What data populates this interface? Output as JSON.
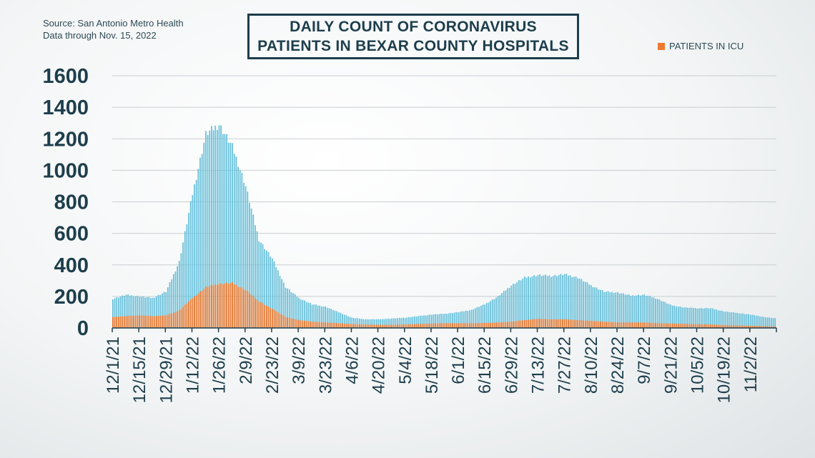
{
  "header": {
    "source_line1": "Source: San Antonio Metro Health",
    "source_line2": "Data through Nov. 15, 2022",
    "title_line1": "DAILY COUNT OF CORONAVIRUS",
    "title_line2": "PATIENTS IN BEXAR COUNTY HOSPITALS",
    "legend_icu": "PATIENTS IN ICU"
  },
  "colors": {
    "total": "#67c0da",
    "icu": "#ec7a30",
    "grid": "#c9ced1",
    "text": "#1d3e4c"
  },
  "chart_data": {
    "type": "bar",
    "stacked": true,
    "title": "DAILY COUNT OF CORONAVIRUS PATIENTS IN BEXAR COUNTY HOSPITALS",
    "ylim": [
      0,
      1600
    ],
    "yticks": [
      0,
      200,
      400,
      600,
      800,
      1000,
      1200,
      1400,
      1600
    ],
    "xtick_labels": [
      "12/1/21",
      "12/15/21",
      "12/29/21",
      "1/12/22",
      "1/26/22",
      "2/9/22",
      "2/23/22",
      "3/9/22",
      "3/23/22",
      "4/6/22",
      "4/20/22",
      "5/4/22",
      "5/18/22",
      "6/1/22",
      "6/15/22",
      "6/29/22",
      "7/13/22",
      "7/27/22",
      "8/10/22",
      "8/24/22",
      "9/7/22",
      "9/21/22",
      "10/5/22",
      "10/19/22",
      "11/2/22"
    ],
    "grid": true,
    "legend_position": "top-right",
    "date_range": [
      "12/1/21",
      "11/15/22"
    ],
    "weekly_values": {
      "week_start": [
        "12/1/21",
        "12/8/21",
        "12/15/21",
        "12/22/21",
        "12/29/21",
        "1/5/22",
        "1/12/22",
        "1/19/22",
        "1/26/22",
        "2/2/22",
        "2/9/22",
        "2/16/22",
        "2/23/22",
        "3/2/22",
        "3/9/22",
        "3/16/22",
        "3/23/22",
        "3/30/22",
        "4/6/22",
        "4/13/22",
        "4/20/22",
        "4/27/22",
        "5/4/22",
        "5/11/22",
        "5/18/22",
        "5/25/22",
        "6/1/22",
        "6/8/22",
        "6/15/22",
        "6/22/22",
        "6/29/22",
        "7/6/22",
        "7/13/22",
        "7/20/22",
        "7/27/22",
        "8/3/22",
        "8/10/22",
        "8/17/22",
        "8/24/22",
        "8/31/22",
        "9/7/22",
        "9/14/22",
        "9/21/22",
        "9/28/22",
        "10/5/22",
        "10/12/22",
        "10/19/22",
        "10/26/22",
        "11/2/22",
        "11/9/22",
        "11/15/22"
      ],
      "total": [
        185,
        210,
        200,
        190,
        230,
        420,
        850,
        1230,
        1290,
        1150,
        900,
        560,
        440,
        260,
        190,
        150,
        135,
        100,
        65,
        55,
        55,
        60,
        65,
        75,
        85,
        90,
        100,
        115,
        150,
        200,
        270,
        320,
        335,
        330,
        340,
        320,
        270,
        230,
        225,
        205,
        210,
        185,
        145,
        130,
        125,
        125,
        105,
        95,
        85,
        70,
        60
      ],
      "icu": [
        70,
        75,
        80,
        75,
        80,
        110,
        190,
        260,
        280,
        285,
        240,
        170,
        120,
        70,
        50,
        40,
        35,
        30,
        25,
        22,
        20,
        20,
        22,
        25,
        28,
        30,
        30,
        30,
        32,
        35,
        40,
        50,
        58,
        55,
        55,
        50,
        45,
        40,
        35,
        35,
        35,
        30,
        28,
        26,
        24,
        22,
        18,
        16,
        14,
        12,
        10
      ]
    },
    "series": [
      {
        "name": "",
        "role": "total hospitalized"
      },
      {
        "name": "PATIENTS IN ICU",
        "role": "icu"
      }
    ]
  }
}
